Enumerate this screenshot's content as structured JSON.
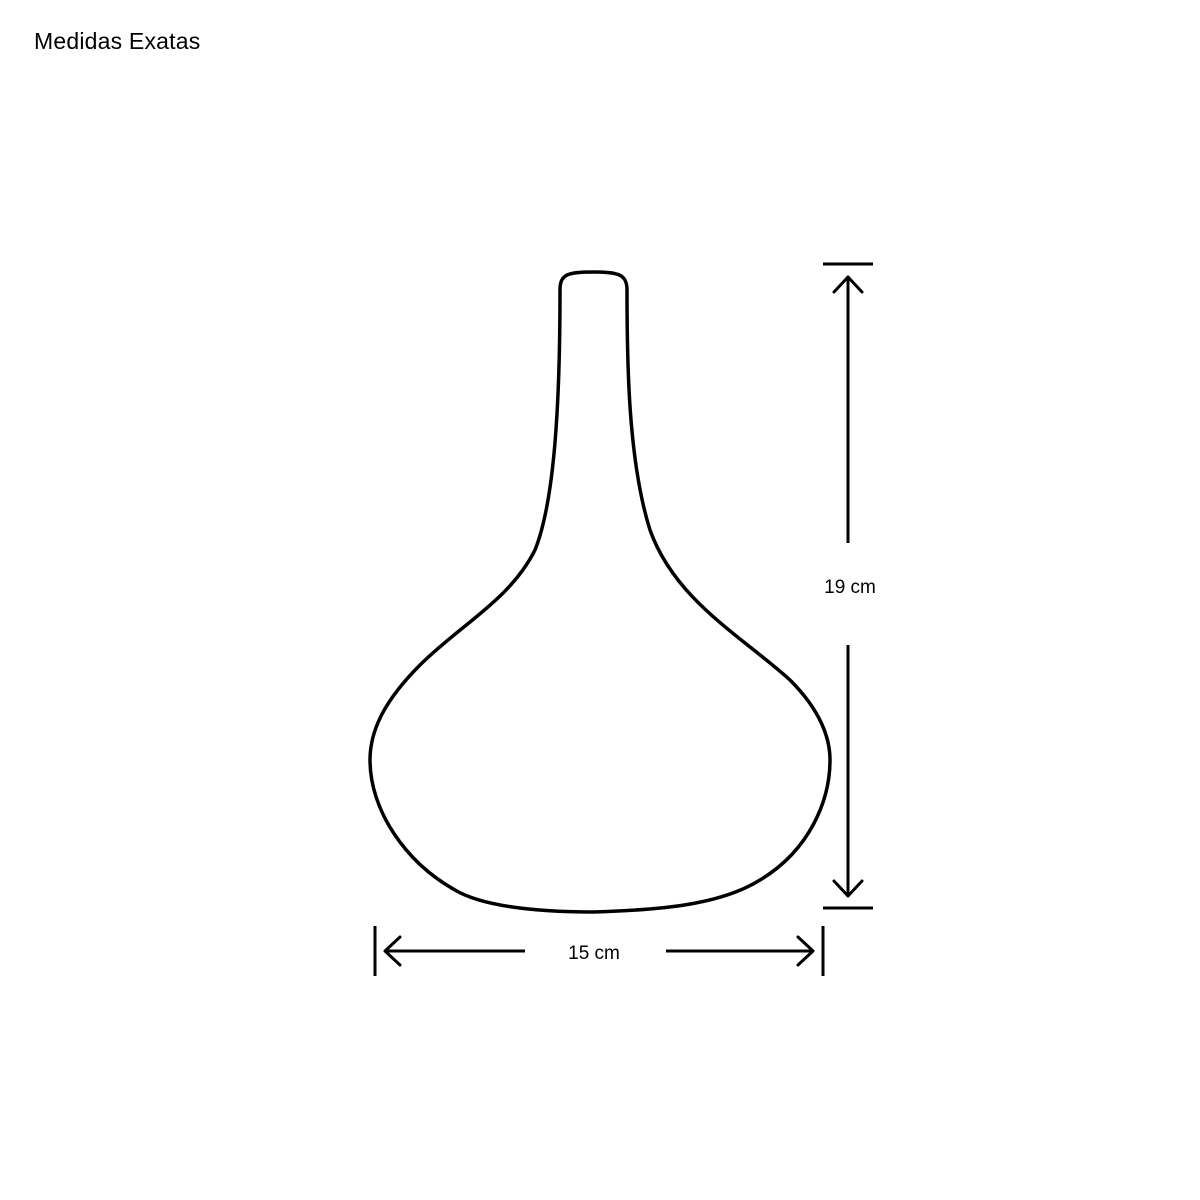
{
  "header": {
    "title": "Medidas Exatas"
  },
  "dimensions": {
    "height": {
      "value": 19,
      "unit": "cm",
      "label": "19 cm"
    },
    "width": {
      "value": 15,
      "unit": "cm",
      "label": "15 cm"
    }
  },
  "colors": {
    "line": "#000000",
    "background": "#ffffff"
  }
}
